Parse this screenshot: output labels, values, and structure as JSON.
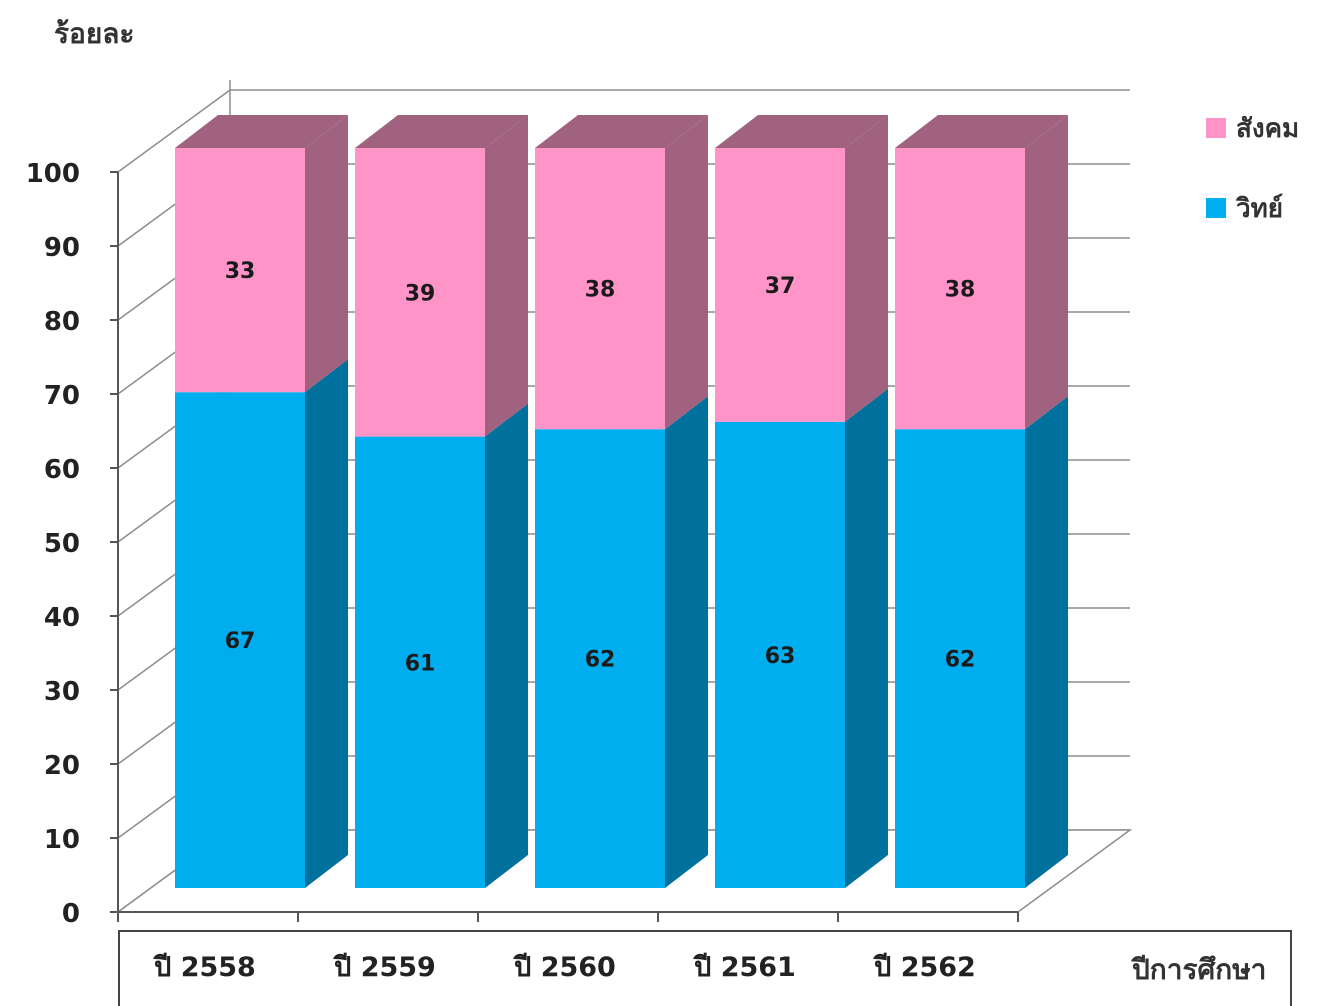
{
  "chart_data": {
    "type": "bar",
    "stacked": true,
    "style": "3d",
    "categories": [
      "ปี 2558",
      "ปี 2559",
      "ปี 2560",
      "ปี 2561",
      "ปี 2562"
    ],
    "series": [
      {
        "name": "วิทย์",
        "values": [
          67,
          61,
          62,
          63,
          62
        ],
        "color": "#00AEEF",
        "side_color": "#00719C"
      },
      {
        "name": "สังคม",
        "values": [
          33,
          39,
          38,
          37,
          38
        ],
        "color": "#FF94C9",
        "side_color": "#A0627F"
      }
    ],
    "ylabel": "ร้อยละ",
    "xlabel": "ปีการศึกษา",
    "ylim": [
      0,
      100
    ],
    "yticks": [
      0,
      10,
      20,
      30,
      40,
      50,
      60,
      70,
      80,
      90,
      100
    ],
    "grid": true,
    "legend_position": "top-right"
  }
}
